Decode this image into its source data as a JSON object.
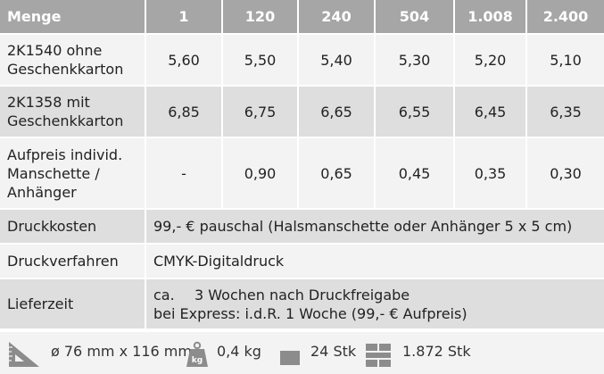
{
  "header": {
    "label": "Menge",
    "quantities": [
      "1",
      "120",
      "240",
      "504",
      "1.008",
      "2.400"
    ]
  },
  "rows": [
    {
      "label_lines": [
        "2K1540 ohne",
        "Geschenkkarton"
      ],
      "prices": [
        "5,60",
        "5,50",
        "5,40",
        "5,30",
        "5,20",
        "5,10"
      ]
    },
    {
      "label_lines": [
        "2K1358 mit",
        "Geschenkkarton"
      ],
      "prices": [
        "6,85",
        "6,75",
        "6,65",
        "6,55",
        "6,45",
        "6,35"
      ]
    },
    {
      "label_lines": [
        "Aufpreis individ.",
        "Manschette /",
        "Anhänger"
      ],
      "prices": [
        "-",
        "0,90",
        "0,65",
        "0,45",
        "0,35",
        "0,30"
      ]
    }
  ],
  "details": {
    "druckkosten": {
      "label": "Druckkosten",
      "value": "99,- € pauschal (Halsmanschette oder Anhänger 5 x 5 cm)"
    },
    "druckverfahren": {
      "label": "Druckverfahren",
      "value": "CMYK-Digitaldruck"
    },
    "lieferzeit": {
      "label": "Lieferzeit",
      "line1_prefix": "ca.",
      "line1_text": "3 Wochen nach Druckfreigabe",
      "line2": "bei Express:  i.d.R. 1 Woche (99,- € Aufpreis)"
    }
  },
  "footer": {
    "dimensions": "ø 76 mm x 116 mm",
    "weight_icon_text": "kg",
    "weight": "0,4 kg",
    "carton": "24 Stk",
    "pallet": "1.872 Stk"
  },
  "colors": {
    "header_bg": "#a6a6a6",
    "row_alt": "#dedede",
    "row_plain": "#f3f3f3",
    "icon": "#8c8c8c"
  },
  "icons": [
    "ruler-triangle-icon",
    "weight-icon",
    "carton-icon",
    "pallet-icon"
  ]
}
